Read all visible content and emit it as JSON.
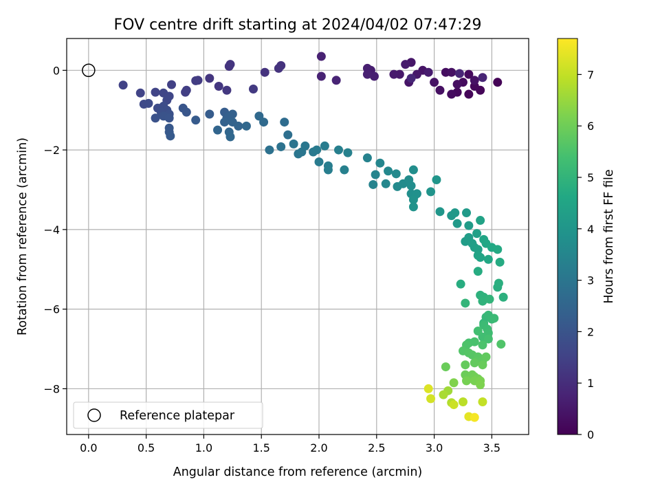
{
  "chart_data": {
    "type": "scatter",
    "title": "FOV centre drift starting at 2024/04/02 07:47:29",
    "xlabel": "Angular distance from reference (arcmin)",
    "ylabel": "Rotation from reference (arcmin)",
    "xlim": [
      -0.19,
      3.82
    ],
    "ylim": [
      -9.15,
      0.8
    ],
    "xticks": [
      0.0,
      0.5,
      1.0,
      1.5,
      2.0,
      2.5,
      3.0,
      3.5
    ],
    "xtick_labels": [
      "0.0",
      "0.5",
      "1.0",
      "1.5",
      "2.0",
      "2.5",
      "3.0",
      "3.5"
    ],
    "yticks": [
      0,
      -2,
      -4,
      -6,
      -8
    ],
    "ytick_labels": [
      "0",
      "−2",
      "−4",
      "−6",
      "−8"
    ],
    "grid": true,
    "colormap": "viridis",
    "colorbar": {
      "label": "Hours from first FF file",
      "range": [
        0,
        7.7
      ],
      "ticks": [
        0,
        1,
        2,
        3,
        4,
        5,
        6,
        7
      ],
      "tick_labels": [
        "0",
        "1",
        "2",
        "3",
        "4",
        "5",
        "6",
        "7"
      ]
    },
    "legend": {
      "location": "lower-left",
      "entries": [
        {
          "label": "Reference platepar",
          "marker": "open-circle",
          "color": "#000000"
        }
      ]
    },
    "reference_point": {
      "x": 0.0,
      "y": 0.0
    },
    "points": [
      {
        "x": 3.55,
        "y": -0.3,
        "h": 0.05
      },
      {
        "x": 3.4,
        "y": -0.5,
        "h": 0.1
      },
      {
        "x": 3.3,
        "y": -0.6,
        "h": 0.12
      },
      {
        "x": 3.35,
        "y": -0.4,
        "h": 0.15
      },
      {
        "x": 3.2,
        "y": -0.55,
        "h": 0.18
      },
      {
        "x": 3.3,
        "y": -0.1,
        "h": 0.2
      },
      {
        "x": 3.25,
        "y": -0.3,
        "h": 0.22
      },
      {
        "x": 3.15,
        "y": -0.6,
        "h": 0.25
      },
      {
        "x": 3.1,
        "y": -0.05,
        "h": 0.27
      },
      {
        "x": 3.2,
        "y": -0.35,
        "h": 0.3
      },
      {
        "x": 3.05,
        "y": -0.5,
        "h": 0.32
      },
      {
        "x": 3.15,
        "y": -0.05,
        "h": 0.35
      },
      {
        "x": 3.35,
        "y": -0.25,
        "h": 0.37
      },
      {
        "x": 3.0,
        "y": -0.3,
        "h": 0.4
      },
      {
        "x": 2.9,
        "y": 0.0,
        "h": 0.42
      },
      {
        "x": 2.78,
        "y": -0.3,
        "h": 0.45
      },
      {
        "x": 2.8,
        "y": 0.2,
        "h": 0.47
      },
      {
        "x": 2.85,
        "y": -0.1,
        "h": 0.5
      },
      {
        "x": 2.7,
        "y": -0.1,
        "h": 0.52
      },
      {
        "x": 2.65,
        "y": -0.1,
        "h": 0.55
      },
      {
        "x": 2.75,
        "y": 0.15,
        "h": 0.57
      },
      {
        "x": 2.95,
        "y": -0.05,
        "h": 0.6
      },
      {
        "x": 2.45,
        "y": 0.0,
        "h": 0.62
      },
      {
        "x": 2.42,
        "y": 0.05,
        "h": 0.65
      },
      {
        "x": 2.48,
        "y": -0.15,
        "h": 0.67
      },
      {
        "x": 2.42,
        "y": -0.1,
        "h": 0.7
      },
      {
        "x": 2.02,
        "y": 0.35,
        "h": 0.72
      },
      {
        "x": 2.02,
        "y": -0.15,
        "h": 0.75
      },
      {
        "x": 2.15,
        "y": -0.25,
        "h": 0.77
      },
      {
        "x": 3.42,
        "y": -0.18,
        "h": 0.8
      },
      {
        "x": 3.22,
        "y": -0.08,
        "h": 0.82
      },
      {
        "x": 2.8,
        "y": -0.2,
        "h": 0.85
      },
      {
        "x": 1.67,
        "y": 0.12,
        "h": 1.1
      },
      {
        "x": 1.65,
        "y": 0.05,
        "h": 1.12
      },
      {
        "x": 1.53,
        "y": -0.05,
        "h": 1.14
      },
      {
        "x": 1.22,
        "y": 0.1,
        "h": 1.16
      },
      {
        "x": 1.23,
        "y": 0.15,
        "h": 1.18
      },
      {
        "x": 1.05,
        "y": -0.2,
        "h": 1.2
      },
      {
        "x": 1.13,
        "y": -0.4,
        "h": 1.23
      },
      {
        "x": 1.2,
        "y": -0.5,
        "h": 1.26
      },
      {
        "x": 1.43,
        "y": -0.47,
        "h": 1.3
      },
      {
        "x": 0.95,
        "y": -0.25,
        "h": 1.33
      },
      {
        "x": 0.93,
        "y": -0.26,
        "h": 1.36
      },
      {
        "x": 0.85,
        "y": -0.5,
        "h": 1.4
      },
      {
        "x": 0.84,
        "y": -0.55,
        "h": 1.43
      },
      {
        "x": 0.72,
        "y": -0.36,
        "h": 1.46
      },
      {
        "x": 0.3,
        "y": -0.37,
        "h": 1.5
      },
      {
        "x": 0.45,
        "y": -0.57,
        "h": 1.53
      },
      {
        "x": 0.58,
        "y": -0.55,
        "h": 1.56
      },
      {
        "x": 0.65,
        "y": -0.57,
        "h": 1.6
      },
      {
        "x": 0.7,
        "y": -0.65,
        "h": 1.63
      },
      {
        "x": 0.68,
        "y": -0.75,
        "h": 1.66
      },
      {
        "x": 0.48,
        "y": -0.85,
        "h": 1.7
      },
      {
        "x": 0.52,
        "y": -0.83,
        "h": 1.73
      },
      {
        "x": 0.6,
        "y": -0.95,
        "h": 1.76
      },
      {
        "x": 0.65,
        "y": -0.9,
        "h": 1.8
      },
      {
        "x": 0.68,
        "y": -1.0,
        "h": 1.83
      },
      {
        "x": 0.63,
        "y": -1.05,
        "h": 1.86
      },
      {
        "x": 0.7,
        "y": -1.1,
        "h": 1.9
      },
      {
        "x": 0.58,
        "y": -1.2,
        "h": 1.93
      },
      {
        "x": 0.65,
        "y": -1.15,
        "h": 1.96
      },
      {
        "x": 0.7,
        "y": -1.2,
        "h": 2.0
      },
      {
        "x": 0.82,
        "y": -0.95,
        "h": 2.03
      },
      {
        "x": 0.85,
        "y": -1.05,
        "h": 2.06
      },
      {
        "x": 0.7,
        "y": -1.45,
        "h": 2.1
      },
      {
        "x": 0.7,
        "y": -1.55,
        "h": 2.13
      },
      {
        "x": 0.71,
        "y": -1.65,
        "h": 2.16
      },
      {
        "x": 0.93,
        "y": -1.25,
        "h": 2.2
      },
      {
        "x": 1.05,
        "y": -1.1,
        "h": 2.23
      },
      {
        "x": 1.18,
        "y": -1.05,
        "h": 2.26
      },
      {
        "x": 1.2,
        "y": -1.2,
        "h": 2.3
      },
      {
        "x": 1.22,
        "y": -1.15,
        "h": 2.33
      },
      {
        "x": 1.25,
        "y": -1.1,
        "h": 2.36
      },
      {
        "x": 1.18,
        "y": -1.3,
        "h": 2.4
      },
      {
        "x": 1.25,
        "y": -1.3,
        "h": 2.43
      },
      {
        "x": 1.3,
        "y": -1.4,
        "h": 2.46
      },
      {
        "x": 1.12,
        "y": -1.5,
        "h": 2.5
      },
      {
        "x": 1.22,
        "y": -1.55,
        "h": 2.53
      },
      {
        "x": 1.23,
        "y": -1.67,
        "h": 2.56
      },
      {
        "x": 1.37,
        "y": -1.4,
        "h": 2.6
      },
      {
        "x": 1.48,
        "y": -1.15,
        "h": 2.63
      },
      {
        "x": 1.52,
        "y": -1.3,
        "h": 2.66
      },
      {
        "x": 1.7,
        "y": -1.3,
        "h": 2.7
      },
      {
        "x": 1.73,
        "y": -1.62,
        "h": 2.8
      },
      {
        "x": 1.57,
        "y": -2.0,
        "h": 2.85
      },
      {
        "x": 1.67,
        "y": -1.92,
        "h": 2.9
      },
      {
        "x": 1.78,
        "y": -1.85,
        "h": 2.95
      },
      {
        "x": 1.82,
        "y": -2.1,
        "h": 3.0
      },
      {
        "x": 1.85,
        "y": -2.05,
        "h": 3.03
      },
      {
        "x": 1.88,
        "y": -1.9,
        "h": 3.06
      },
      {
        "x": 1.95,
        "y": -2.05,
        "h": 3.1
      },
      {
        "x": 1.98,
        "y": -2.0,
        "h": 3.13
      },
      {
        "x": 2.0,
        "y": -2.3,
        "h": 3.16
      },
      {
        "x": 2.05,
        "y": -1.9,
        "h": 3.2
      },
      {
        "x": 2.08,
        "y": -2.4,
        "h": 3.23
      },
      {
        "x": 2.08,
        "y": -2.5,
        "h": 3.26
      },
      {
        "x": 2.17,
        "y": -2.0,
        "h": 3.3
      },
      {
        "x": 2.22,
        "y": -2.5,
        "h": 3.33
      },
      {
        "x": 2.25,
        "y": -2.07,
        "h": 3.36
      },
      {
        "x": 2.42,
        "y": -2.2,
        "h": 3.4
      },
      {
        "x": 2.47,
        "y": -2.87,
        "h": 3.43
      },
      {
        "x": 2.49,
        "y": -2.62,
        "h": 3.46
      },
      {
        "x": 2.53,
        "y": -2.33,
        "h": 3.5
      },
      {
        "x": 2.58,
        "y": -2.85,
        "h": 3.53
      },
      {
        "x": 2.6,
        "y": -2.53,
        "h": 3.56
      },
      {
        "x": 2.67,
        "y": -2.6,
        "h": 3.6
      },
      {
        "x": 2.68,
        "y": -2.92,
        "h": 3.63
      },
      {
        "x": 2.73,
        "y": -2.85,
        "h": 3.66
      },
      {
        "x": 2.78,
        "y": -2.75,
        "h": 3.7
      },
      {
        "x": 2.8,
        "y": -2.9,
        "h": 3.73
      },
      {
        "x": 2.82,
        "y": -2.5,
        "h": 3.76
      },
      {
        "x": 2.8,
        "y": -3.1,
        "h": 3.8
      },
      {
        "x": 2.83,
        "y": -3.15,
        "h": 3.83
      },
      {
        "x": 2.85,
        "y": -3.1,
        "h": 3.86
      },
      {
        "x": 2.82,
        "y": -3.25,
        "h": 3.9
      },
      {
        "x": 2.82,
        "y": -3.43,
        "h": 3.93
      },
      {
        "x": 2.97,
        "y": -3.05,
        "h": 3.96
      },
      {
        "x": 3.02,
        "y": -2.75,
        "h": 4.0
      },
      {
        "x": 3.05,
        "y": -3.55,
        "h": 4.03
      },
      {
        "x": 3.15,
        "y": -3.65,
        "h": 4.06
      },
      {
        "x": 3.18,
        "y": -3.58,
        "h": 4.1
      },
      {
        "x": 3.2,
        "y": -3.85,
        "h": 4.13
      },
      {
        "x": 3.28,
        "y": -3.58,
        "h": 4.16
      },
      {
        "x": 3.3,
        "y": -3.9,
        "h": 4.2
      },
      {
        "x": 3.27,
        "y": -4.3,
        "h": 4.23
      },
      {
        "x": 3.3,
        "y": -4.2,
        "h": 4.26
      },
      {
        "x": 3.33,
        "y": -4.35,
        "h": 4.3
      },
      {
        "x": 3.35,
        "y": -4.45,
        "h": 4.33
      },
      {
        "x": 3.37,
        "y": -4.1,
        "h": 4.36
      },
      {
        "x": 3.38,
        "y": -4.5,
        "h": 4.4
      },
      {
        "x": 3.4,
        "y": -3.77,
        "h": 4.43
      },
      {
        "x": 3.38,
        "y": -4.65,
        "h": 4.46
      },
      {
        "x": 3.4,
        "y": -4.7,
        "h": 4.5
      },
      {
        "x": 3.43,
        "y": -4.25,
        "h": 4.53
      },
      {
        "x": 3.45,
        "y": -4.35,
        "h": 4.56
      },
      {
        "x": 3.47,
        "y": -4.75,
        "h": 4.6
      },
      {
        "x": 3.5,
        "y": -4.45,
        "h": 4.63
      },
      {
        "x": 3.55,
        "y": -4.5,
        "h": 4.66
      },
      {
        "x": 3.57,
        "y": -4.82,
        "h": 4.7
      },
      {
        "x": 3.38,
        "y": -5.05,
        "h": 4.73
      },
      {
        "x": 3.23,
        "y": -5.37,
        "h": 4.76
      },
      {
        "x": 3.55,
        "y": -5.45,
        "h": 4.8
      },
      {
        "x": 3.56,
        "y": -5.35,
        "h": 4.83
      },
      {
        "x": 3.6,
        "y": -5.7,
        "h": 4.86
      },
      {
        "x": 3.4,
        "y": -5.65,
        "h": 4.9
      },
      {
        "x": 3.43,
        "y": -5.7,
        "h": 4.93
      },
      {
        "x": 3.42,
        "y": -5.8,
        "h": 4.96
      },
      {
        "x": 3.48,
        "y": -5.75,
        "h": 5.0
      },
      {
        "x": 3.27,
        "y": -5.85,
        "h": 5.03
      },
      {
        "x": 3.43,
        "y": -6.35,
        "h": 5.06
      },
      {
        "x": 3.45,
        "y": -6.2,
        "h": 5.1
      },
      {
        "x": 3.47,
        "y": -6.15,
        "h": 5.13
      },
      {
        "x": 3.5,
        "y": -6.25,
        "h": 5.16
      },
      {
        "x": 3.52,
        "y": -6.23,
        "h": 5.2
      },
      {
        "x": 3.43,
        "y": -6.4,
        "h": 5.23
      },
      {
        "x": 3.46,
        "y": -6.5,
        "h": 5.26
      },
      {
        "x": 3.47,
        "y": -6.6,
        "h": 5.3
      },
      {
        "x": 3.42,
        "y": -6.7,
        "h": 5.33
      },
      {
        "x": 3.38,
        "y": -6.55,
        "h": 5.36
      },
      {
        "x": 3.47,
        "y": -6.75,
        "h": 5.4
      },
      {
        "x": 3.3,
        "y": -6.85,
        "h": 5.43
      },
      {
        "x": 3.35,
        "y": -6.82,
        "h": 5.46
      },
      {
        "x": 3.42,
        "y": -6.9,
        "h": 5.5
      },
      {
        "x": 3.28,
        "y": -6.9,
        "h": 5.53
      },
      {
        "x": 3.58,
        "y": -6.88,
        "h": 5.56
      },
      {
        "x": 3.25,
        "y": -7.05,
        "h": 5.6
      },
      {
        "x": 3.3,
        "y": -7.1,
        "h": 5.63
      },
      {
        "x": 3.33,
        "y": -7.15,
        "h": 5.66
      },
      {
        "x": 3.38,
        "y": -7.2,
        "h": 5.7
      },
      {
        "x": 3.37,
        "y": -7.3,
        "h": 5.73
      },
      {
        "x": 3.42,
        "y": -7.3,
        "h": 5.76
      },
      {
        "x": 3.45,
        "y": -7.2,
        "h": 5.8
      },
      {
        "x": 3.35,
        "y": -7.35,
        "h": 5.83
      },
      {
        "x": 3.27,
        "y": -7.4,
        "h": 5.86
      },
      {
        "x": 3.42,
        "y": -7.4,
        "h": 5.9
      },
      {
        "x": 3.1,
        "y": -7.45,
        "h": 5.93
      },
      {
        "x": 3.27,
        "y": -7.65,
        "h": 5.96
      },
      {
        "x": 3.33,
        "y": -7.65,
        "h": 6.0
      },
      {
        "x": 3.35,
        "y": -7.7,
        "h": 6.03
      },
      {
        "x": 3.38,
        "y": -7.75,
        "h": 6.06
      },
      {
        "x": 3.28,
        "y": -7.8,
        "h": 6.1
      },
      {
        "x": 3.35,
        "y": -7.8,
        "h": 6.13
      },
      {
        "x": 3.4,
        "y": -7.8,
        "h": 6.16
      },
      {
        "x": 3.4,
        "y": -7.9,
        "h": 6.2
      },
      {
        "x": 3.17,
        "y": -7.85,
        "h": 6.23
      },
      {
        "x": 3.12,
        "y": -8.05,
        "h": 6.6
      },
      {
        "x": 3.08,
        "y": -8.15,
        "h": 6.7
      },
      {
        "x": 3.15,
        "y": -8.35,
        "h": 6.8
      },
      {
        "x": 3.25,
        "y": -8.33,
        "h": 6.9
      },
      {
        "x": 3.42,
        "y": -8.33,
        "h": 7.0
      },
      {
        "x": 3.17,
        "y": -8.4,
        "h": 7.1
      },
      {
        "x": 2.97,
        "y": -8.25,
        "h": 7.2
      },
      {
        "x": 2.95,
        "y": -8.0,
        "h": 7.3
      },
      {
        "x": 3.3,
        "y": -8.7,
        "h": 7.4
      },
      {
        "x": 3.35,
        "y": -8.72,
        "h": 7.6
      }
    ]
  }
}
